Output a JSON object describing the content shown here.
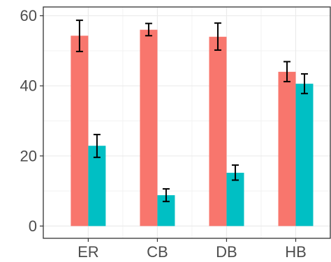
{
  "chart_data": {
    "type": "bar",
    "title": "",
    "xlabel": "",
    "ylabel": "",
    "categories": [
      "ER",
      "CB",
      "DB",
      "HB"
    ],
    "series": [
      {
        "color": "#F8766D",
        "values": [
          54.3,
          56.0,
          54.0,
          44.0
        ],
        "err_low": [
          49.8,
          54.3,
          50.2,
          41.2
        ],
        "err_high": [
          58.7,
          57.8,
          57.9,
          46.9
        ]
      },
      {
        "color": "#00BFC4",
        "values": [
          22.9,
          8.8,
          15.2,
          40.6
        ],
        "err_low": [
          19.6,
          7.0,
          13.1,
          37.8
        ],
        "err_high": [
          26.1,
          10.6,
          17.4,
          43.4
        ]
      }
    ],
    "y_ticks": [
      "0",
      "20",
      "40",
      "60"
    ],
    "ylim": [
      0,
      62
    ],
    "grid": true,
    "legend": "none",
    "theme": "black-and-white panel with light gridlines"
  }
}
